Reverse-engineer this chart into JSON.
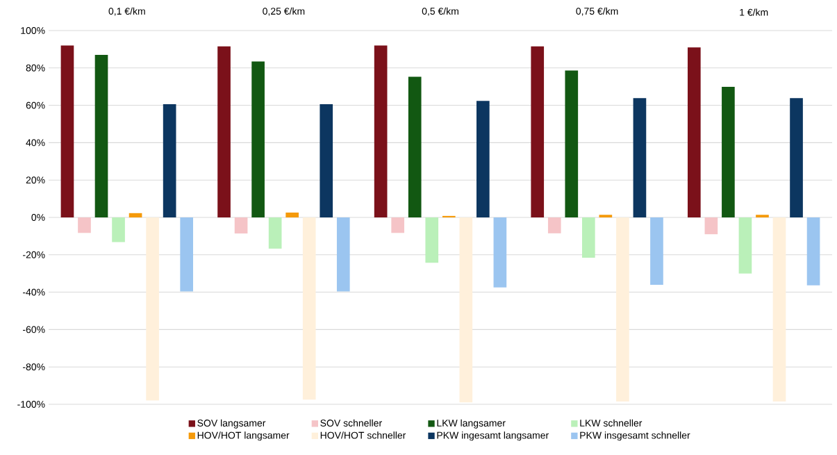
{
  "chart_data": {
    "type": "bar",
    "categories": [
      "0,1 €/km",
      "0,25 €/km",
      "0,5 €/km",
      "0,75 €/km",
      "1 €/km"
    ],
    "series": [
      {
        "name": "SOV langsamer",
        "color": "#7b111a",
        "values": [
          92,
          91.5,
          92,
          91.5,
          91
        ]
      },
      {
        "name": "SOV schneller",
        "color": "#f5c4c7",
        "values": [
          -8.3,
          -8.6,
          -8.3,
          -8.5,
          -9
        ]
      },
      {
        "name": "LKW langsamer",
        "color": "#125812",
        "values": [
          87,
          83.5,
          75.3,
          78.6,
          69.9
        ]
      },
      {
        "name": "LKW schneller",
        "color": "#baf0b9",
        "values": [
          -13.2,
          -16.7,
          -24.3,
          -21.6,
          -30
        ]
      },
      {
        "name": "HOV/HOT langsamer",
        "color": "#f59a0a",
        "values": [
          2.3,
          2.6,
          0.8,
          1.4,
          1.4
        ]
      },
      {
        "name": "HOV/HOT schneller",
        "color": "#fff0db",
        "values": [
          -98,
          -97.5,
          -99,
          -98.5,
          -98.5
        ]
      },
      {
        "name": "PKW ingesamt langsamer",
        "color": "#0c3660",
        "values": [
          60.6,
          60.6,
          62.4,
          63.8,
          63.8
        ]
      },
      {
        "name": "PKW insgesamt schneller",
        "color": "#9bc5f0",
        "values": [
          -39.6,
          -39.6,
          -37.5,
          -36.1,
          -36.3
        ]
      }
    ],
    "ylim": [
      -100,
      100
    ],
    "yticks": [
      {
        "value": -100,
        "label": "-100%"
      },
      {
        "value": -80,
        "label": "-80%"
      },
      {
        "value": -60,
        "label": "-60%"
      },
      {
        "value": -40,
        "label": "-40%"
      },
      {
        "value": -20,
        "label": "-20%"
      },
      {
        "value": 0,
        "label": "0%"
      },
      {
        "value": 20,
        "label": "20%"
      },
      {
        "value": 40,
        "label": "40%"
      },
      {
        "value": 60,
        "label": "60%"
      },
      {
        "value": 80,
        "label": "80%"
      },
      {
        "value": 100,
        "label": "100%"
      }
    ],
    "grid": "y",
    "legend": "bottom"
  }
}
